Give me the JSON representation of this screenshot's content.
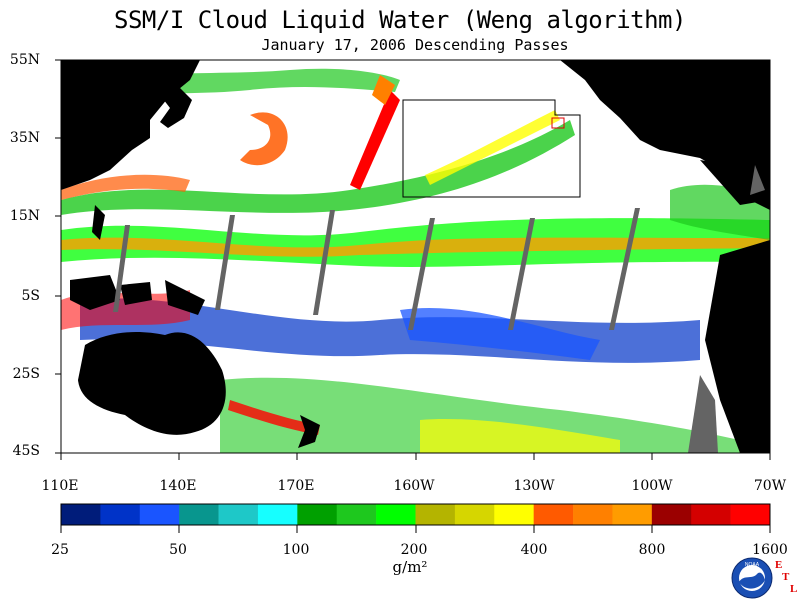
{
  "title": "SSM/I Cloud Liquid Water (Weng algorithm)",
  "subtitle": "January 17, 2006  Descending Passes",
  "latitude_labels": [
    "55N",
    "35N",
    "15N",
    "5S",
    "25S",
    "45S"
  ],
  "longitude_labels": [
    "110E",
    "140E",
    "170E",
    "160W",
    "130W",
    "100W",
    "70W"
  ],
  "colorbar": {
    "tick_labels": [
      "25",
      "50",
      "100",
      "200",
      "400",
      "800",
      "1600"
    ],
    "units": "g/m²",
    "colors": [
      "#001c7a",
      "#0033c8",
      "#1a55ff",
      "#08968e",
      "#1ec8c8",
      "#16ffff",
      "#00a000",
      "#1ec81e",
      "#00ff00",
      "#b4b400",
      "#d6d600",
      "#ffff00",
      "#ff5a00",
      "#ff8000",
      "#ff9c00",
      "#9b0000",
      "#d40000",
      "#ff0000"
    ]
  },
  "logo": {
    "name": "NOAA",
    "text": "NOAA"
  },
  "corner_mark": {
    "letters": [
      "E",
      "T",
      "L"
    ]
  },
  "colors": {
    "land": "#000000",
    "swath_gap": "#646464",
    "ocean_clear": "#ffffff",
    "mark_red": "#e00000"
  }
}
